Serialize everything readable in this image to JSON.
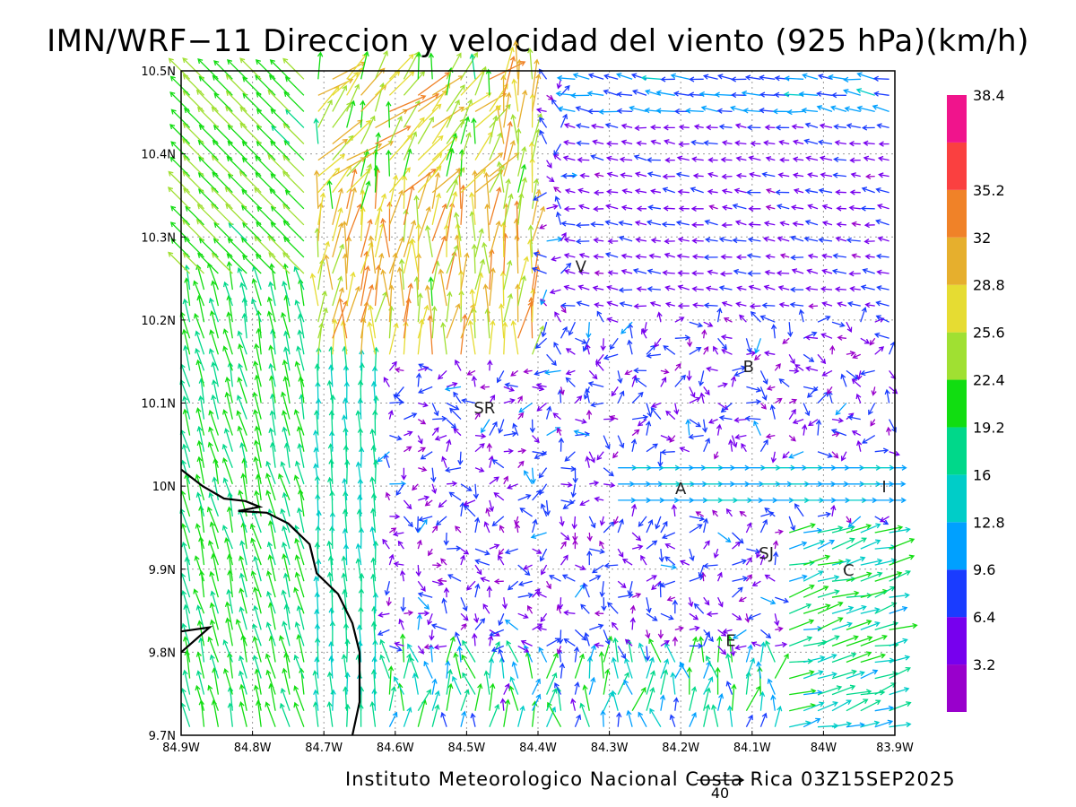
{
  "title": "IMN/WRF−11 Direccion y velocidad del viento (925 hPa)(km/h)",
  "footer": "Instituto Meteorologico Nacional Costa Rica 03Z15SEP2025",
  "axes": {
    "lon": {
      "min": -84.9,
      "max": -83.9,
      "ticks": [
        {
          "value": -84.9,
          "label": "84.9W"
        },
        {
          "value": -84.8,
          "label": "84.8W"
        },
        {
          "value": -84.7,
          "label": "84.7W"
        },
        {
          "value": -84.6,
          "label": "84.6W"
        },
        {
          "value": -84.5,
          "label": "84.5W"
        },
        {
          "value": -84.4,
          "label": "84.4W"
        },
        {
          "value": -84.3,
          "label": "84.3W"
        },
        {
          "value": -84.2,
          "label": "84.2W"
        },
        {
          "value": -84.1,
          "label": "84.1W"
        },
        {
          "value": -84.0,
          "label": "84W"
        },
        {
          "value": -83.9,
          "label": "83.9W"
        }
      ]
    },
    "lat": {
      "min": 9.7,
      "max": 10.5,
      "ticks": [
        {
          "value": 9.7,
          "label": "9.7N"
        },
        {
          "value": 9.8,
          "label": "9.8N"
        },
        {
          "value": 9.9,
          "label": "9.9N"
        },
        {
          "value": 10.0,
          "label": "10N"
        },
        {
          "value": 10.1,
          "label": "10.1N"
        },
        {
          "value": 10.2,
          "label": "10.2N"
        },
        {
          "value": 10.3,
          "label": "10.3N"
        },
        {
          "value": 10.4,
          "label": "10.4N"
        },
        {
          "value": 10.5,
          "label": "10.5N"
        }
      ]
    },
    "grid": true
  },
  "colorbar": {
    "levels": [
      {
        "color": "#9900cc",
        "label": "3.2"
      },
      {
        "color": "#7700ee",
        "label": "6.4"
      },
      {
        "color": "#1a3cff",
        "label": "9.6"
      },
      {
        "color": "#00a0ff",
        "label": "12.8"
      },
      {
        "color": "#00cdc8",
        "label": "16"
      },
      {
        "color": "#00d88a",
        "label": "19.2"
      },
      {
        "color": "#11dd11",
        "label": "22.4"
      },
      {
        "color": "#a0e032",
        "label": "25.6"
      },
      {
        "color": "#e6dc32",
        "label": "28.8"
      },
      {
        "color": "#e6af2d",
        "label": "32"
      },
      {
        "color": "#f08228",
        "label": "35.2"
      },
      {
        "color": "#fa4040",
        "label": ""
      },
      {
        "color": "#f0148c",
        "label": "38.4"
      }
    ]
  },
  "reference_vector": {
    "label": "40",
    "speed": 40
  },
  "places": [
    {
      "name": "V",
      "lon": -84.34,
      "lat": 10.265
    },
    {
      "name": "B",
      "lon": -84.105,
      "lat": 10.145
    },
    {
      "name": "SR",
      "lon": -84.475,
      "lat": 10.095
    },
    {
      "name": "A",
      "lon": -84.2,
      "lat": 9.998
    },
    {
      "name": "I",
      "lon": -83.915,
      "lat": 10.0
    },
    {
      "name": "SJ",
      "lon": -84.08,
      "lat": 9.92
    },
    {
      "name": "C",
      "lon": -83.965,
      "lat": 9.9
    },
    {
      "name": "E",
      "lon": -84.13,
      "lat": 9.815
    }
  ],
  "coastline": [
    [
      -84.9,
      10.02
    ],
    [
      -84.87,
      10.0
    ],
    [
      -84.84,
      9.985
    ],
    [
      -84.81,
      9.982
    ],
    [
      -84.79,
      9.975
    ],
    [
      -84.82,
      9.97
    ],
    [
      -84.78,
      9.968
    ],
    [
      -84.75,
      9.955
    ],
    [
      -84.72,
      9.93
    ],
    [
      -84.71,
      9.895
    ],
    [
      -84.68,
      9.87
    ],
    [
      -84.66,
      9.835
    ],
    [
      -84.65,
      9.8
    ],
    [
      -84.65,
      9.74
    ],
    [
      -84.66,
      9.7
    ]
  ],
  "coastline_2": [
    [
      -84.9,
      9.825
    ],
    [
      -84.86,
      9.83
    ],
    [
      -84.9,
      9.8
    ]
  ]
}
